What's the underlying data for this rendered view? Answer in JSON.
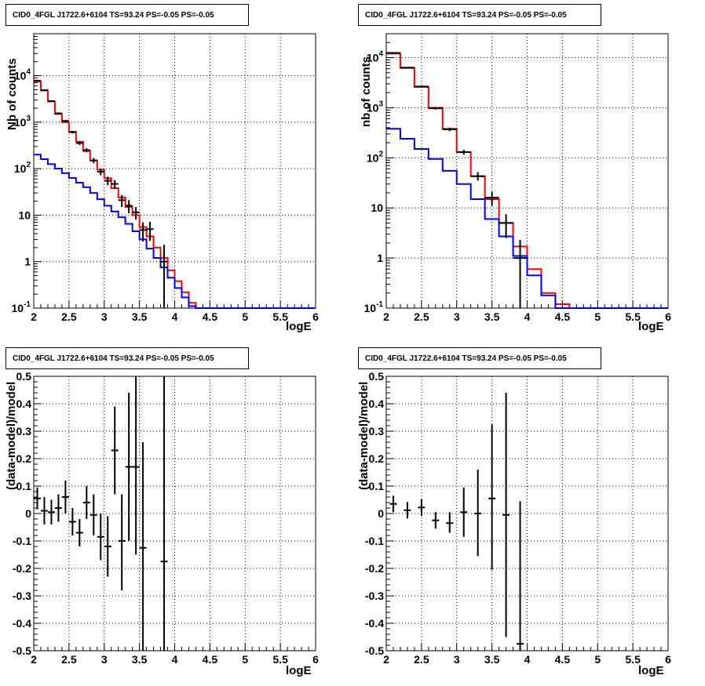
{
  "chart_data": [
    {
      "type": "line",
      "title": "CID0_4FGL J1722.6+6104 TS=93.24 PS=-0.05 PS=-0.05",
      "xlabel": "logE",
      "ylabel": "Nb of counts",
      "xlim": [
        2,
        6
      ],
      "ylim": [
        0.1,
        80000
      ],
      "log_y": true,
      "grid": true,
      "xticks": [
        "2",
        "2.5",
        "3",
        "3.5",
        "4",
        "4.5",
        "5",
        "5.5",
        "6"
      ],
      "yticks": [
        {
          "value": 0.1,
          "label": "10",
          "sup": "-1"
        },
        {
          "value": 1,
          "label": "1",
          "sup": ""
        },
        {
          "value": 10,
          "label": "10",
          "sup": ""
        },
        {
          "value": 100,
          "label": "10",
          "sup": "2"
        },
        {
          "value": 1000,
          "label": "10",
          "sup": "3"
        },
        {
          "value": 10000,
          "label": "10",
          "sup": "4"
        }
      ],
      "bin_edges": [
        2.0,
        2.1,
        2.2,
        2.3,
        2.4,
        2.5,
        2.6,
        2.7,
        2.8,
        2.9,
        3.0,
        3.1,
        3.2,
        3.3,
        3.4,
        3.5,
        3.6,
        3.7,
        3.8,
        3.9,
        4.0,
        4.1,
        4.2,
        4.3,
        4.4,
        4.5,
        4.6,
        4.7,
        4.8,
        4.9,
        5.0,
        5.1,
        5.2,
        5.3,
        5.4,
        5.5,
        5.6,
        5.7,
        5.8,
        5.9,
        6.0
      ],
      "series": [
        {
          "color": "#ff0000",
          "values": [
            7500,
            4800,
            2800,
            1500,
            1000,
            620,
            380,
            240,
            150,
            95,
            62,
            38,
            24,
            15,
            10,
            5.5,
            3.5,
            2.0,
            1.2,
            0.65,
            0.38,
            0.22,
            0.13,
            0.1,
            0.1,
            0.1,
            0.1,
            0.1,
            0.1,
            0.1,
            0.1,
            0.1,
            0.1,
            0.1,
            0.1,
            0.1,
            0.1,
            0.1,
            0.1,
            0.1
          ]
        },
        {
          "color": "#0000ff",
          "values": [
            200,
            160,
            125,
            100,
            80,
            63,
            50,
            40,
            30,
            22,
            16,
            12,
            9,
            6.5,
            4.5,
            3.0,
            1.9,
            1.2,
            0.75,
            0.45,
            0.27,
            0.17,
            0.11,
            0.1,
            0.1,
            0.1,
            0.1,
            0.1,
            0.1,
            0.1,
            0.1,
            0.1,
            0.1,
            0.1,
            0.1,
            0.1,
            0.1,
            0.1,
            0.1,
            0.1
          ]
        }
      ],
      "data_points": [
        {
          "x": 2.05,
          "y": 7800,
          "lo": 7600,
          "hi": 8000
        },
        {
          "x": 2.15,
          "y": 4900,
          "lo": 4750,
          "hi": 5050
        },
        {
          "x": 2.25,
          "y": 2850,
          "lo": 2750,
          "hi": 2950
        },
        {
          "x": 2.35,
          "y": 1550,
          "lo": 1480,
          "hi": 1620
        },
        {
          "x": 2.45,
          "y": 1060,
          "lo": 1000,
          "hi": 1120
        },
        {
          "x": 2.55,
          "y": 610,
          "lo": 570,
          "hi": 650
        },
        {
          "x": 2.65,
          "y": 355,
          "lo": 325,
          "hi": 385
        },
        {
          "x": 2.75,
          "y": 250,
          "lo": 225,
          "hi": 275
        },
        {
          "x": 2.85,
          "y": 150,
          "lo": 130,
          "hi": 170
        },
        {
          "x": 2.95,
          "y": 86,
          "lo": 72,
          "hi": 100
        },
        {
          "x": 3.05,
          "y": 55,
          "lo": 44,
          "hi": 67
        },
        {
          "x": 3.15,
          "y": 47,
          "lo": 37,
          "hi": 57
        },
        {
          "x": 3.25,
          "y": 21,
          "lo": 15,
          "hi": 27
        },
        {
          "x": 3.35,
          "y": 16,
          "lo": 11,
          "hi": 21
        },
        {
          "x": 3.45,
          "y": 11.5,
          "lo": 8,
          "hi": 15
        },
        {
          "x": 3.55,
          "y": 4.8,
          "lo": 2.7,
          "hi": 7
        },
        {
          "x": 3.65,
          "y": 5,
          "lo": 2.8,
          "hi": 7.2
        },
        {
          "x": 3.85,
          "y": 1,
          "lo": 0.1,
          "hi": 2.3
        }
      ]
    },
    {
      "type": "line",
      "title": "CID0_4FGL J1722.6+6104 TS=93.24 PS=-0.05 PS=-0.05",
      "xlabel": "logE",
      "ylabel": "nb of counts",
      "xlim": [
        2,
        6
      ],
      "ylim": [
        0.1,
        30000
      ],
      "log_y": true,
      "grid": true,
      "xticks": [
        "2",
        "2.5",
        "3",
        "3.5",
        "4",
        "4.5",
        "5",
        "5.5",
        "6"
      ],
      "yticks": [
        {
          "value": 0.1,
          "label": "10",
          "sup": "-1"
        },
        {
          "value": 1,
          "label": "1",
          "sup": ""
        },
        {
          "value": 10,
          "label": "10",
          "sup": ""
        },
        {
          "value": 100,
          "label": "10",
          "sup": "2"
        },
        {
          "value": 1000,
          "label": "10",
          "sup": "3"
        },
        {
          "value": 10000,
          "label": "10",
          "sup": "4"
        }
      ],
      "bin_edges": [
        2.0,
        2.2,
        2.4,
        2.6,
        2.8,
        3.0,
        3.2,
        3.4,
        3.6,
        3.8,
        4.0,
        4.2,
        4.4,
        4.6,
        4.8,
        5.0,
        5.2,
        5.4,
        5.6,
        5.8,
        6.0
      ],
      "series": [
        {
          "color": "#ff0000",
          "values": [
            12000,
            6200,
            2600,
            1000,
            380,
            130,
            43,
            15,
            5,
            1.7,
            0.6,
            0.2,
            0.12,
            0.1,
            0.1,
            0.1,
            0.1,
            0.1,
            0.1,
            0.1
          ]
        },
        {
          "color": "#0000ff",
          "values": [
            380,
            240,
            150,
            95,
            55,
            30,
            15,
            6,
            2.7,
            1.1,
            0.45,
            0.18,
            0.1,
            0.1,
            0.1,
            0.1,
            0.1,
            0.1,
            0.1,
            0.1
          ]
        }
      ],
      "data_points": [
        {
          "x": 2.1,
          "y": 12400,
          "lo": 12100,
          "hi": 12700
        },
        {
          "x": 2.3,
          "y": 6300,
          "lo": 6100,
          "hi": 6500
        },
        {
          "x": 2.5,
          "y": 2650,
          "lo": 2550,
          "hi": 2750
        },
        {
          "x": 2.7,
          "y": 975,
          "lo": 920,
          "hi": 1030
        },
        {
          "x": 2.9,
          "y": 370,
          "lo": 340,
          "hi": 400
        },
        {
          "x": 3.1,
          "y": 130,
          "lo": 115,
          "hi": 145
        },
        {
          "x": 3.3,
          "y": 43,
          "lo": 35,
          "hi": 52
        },
        {
          "x": 3.5,
          "y": 16,
          "lo": 11,
          "hi": 21
        },
        {
          "x": 3.7,
          "y": 5,
          "lo": 2.5,
          "hi": 7.5
        },
        {
          "x": 3.9,
          "y": 1,
          "lo": 0.1,
          "hi": 2.3
        }
      ]
    },
    {
      "type": "scatter",
      "title": "CID0_4FGL J1722.6+6104 TS=93.24 PS=-0.05 PS=-0.05",
      "xlabel": "logE",
      "ylabel": "(data-model)/model",
      "xlim": [
        2,
        6
      ],
      "ylim": [
        -0.5,
        0.5
      ],
      "log_y": false,
      "grid": true,
      "xticks": [
        "2",
        "2.5",
        "3",
        "3.5",
        "4",
        "4.5",
        "5",
        "5.5",
        "6"
      ],
      "yticks": [
        "0.5",
        "0.4",
        "0.3",
        "0.2",
        "0.1",
        "0",
        "-0.1",
        "-0.2",
        "-0.3",
        "-0.4",
        "-0.5"
      ],
      "data_points": [
        {
          "x": 2.05,
          "y": 0.055,
          "lo": 0.015,
          "hi": 0.095
        },
        {
          "x": 2.15,
          "y": 0.01,
          "lo": -0.04,
          "hi": 0.06
        },
        {
          "x": 2.25,
          "y": 0.005,
          "lo": -0.04,
          "hi": 0.05
        },
        {
          "x": 2.35,
          "y": 0.02,
          "lo": -0.03,
          "hi": 0.07
        },
        {
          "x": 2.45,
          "y": 0.06,
          "lo": 0.0,
          "hi": 0.12
        },
        {
          "x": 2.55,
          "y": -0.03,
          "lo": -0.08,
          "hi": 0.02
        },
        {
          "x": 2.65,
          "y": -0.07,
          "lo": -0.12,
          "hi": -0.02
        },
        {
          "x": 2.75,
          "y": 0.04,
          "lo": -0.02,
          "hi": 0.1
        },
        {
          "x": 2.85,
          "y": -0.005,
          "lo": -0.08,
          "hi": 0.07
        },
        {
          "x": 2.95,
          "y": -0.085,
          "lo": -0.17,
          "hi": 0.0
        },
        {
          "x": 3.05,
          "y": -0.12,
          "lo": -0.23,
          "hi": -0.01
        },
        {
          "x": 3.15,
          "y": 0.23,
          "lo": 0.07,
          "hi": 0.39
        },
        {
          "x": 3.25,
          "y": -0.1,
          "lo": -0.28,
          "hi": 0.07
        },
        {
          "x": 3.35,
          "y": 0.17,
          "lo": -0.1,
          "hi": 0.44
        },
        {
          "x": 3.45,
          "y": 0.17,
          "lo": -0.15,
          "hi": 0.5
        },
        {
          "x": 3.55,
          "y": -0.125,
          "lo": -0.5,
          "hi": 0.26
        },
        {
          "x": 3.85,
          "y": -0.175,
          "lo": -0.5,
          "hi": 0.5
        }
      ]
    },
    {
      "type": "scatter",
      "title": "CID0_4FGL J1722.6+6104 TS=93.24 PS=-0.05 PS=-0.05",
      "xlabel": "logE",
      "ylabel": "(data-model)/model",
      "xlim": [
        2,
        6
      ],
      "ylim": [
        -0.5,
        0.5
      ],
      "log_y": false,
      "grid": true,
      "xticks": [
        "2",
        "2.5",
        "3",
        "3.5",
        "4",
        "4.5",
        "5",
        "5.5",
        "6"
      ],
      "yticks": [
        "0.5",
        "0.4",
        "0.3",
        "0.2",
        "0.1",
        "0",
        "-0.1",
        "-0.2",
        "-0.3",
        "-0.4",
        "-0.5"
      ],
      "data_points": [
        {
          "x": 2.1,
          "y": 0.035,
          "lo": 0.005,
          "hi": 0.065
        },
        {
          "x": 2.3,
          "y": 0.012,
          "lo": -0.018,
          "hi": 0.042
        },
        {
          "x": 2.5,
          "y": 0.022,
          "lo": -0.008,
          "hi": 0.052
        },
        {
          "x": 2.7,
          "y": -0.025,
          "lo": -0.055,
          "hi": 0.005
        },
        {
          "x": 2.9,
          "y": -0.035,
          "lo": -0.07,
          "hi": 0.005
        },
        {
          "x": 3.1,
          "y": 0.005,
          "lo": -0.085,
          "hi": 0.095
        },
        {
          "x": 3.3,
          "y": 0.0,
          "lo": -0.155,
          "hi": 0.16
        },
        {
          "x": 3.5,
          "y": 0.055,
          "lo": -0.205,
          "hi": 0.325
        },
        {
          "x": 3.7,
          "y": -0.005,
          "lo": -0.45,
          "hi": 0.44
        },
        {
          "x": 3.9,
          "y": -0.475,
          "lo": -0.5,
          "hi": 0.045
        }
      ]
    }
  ]
}
